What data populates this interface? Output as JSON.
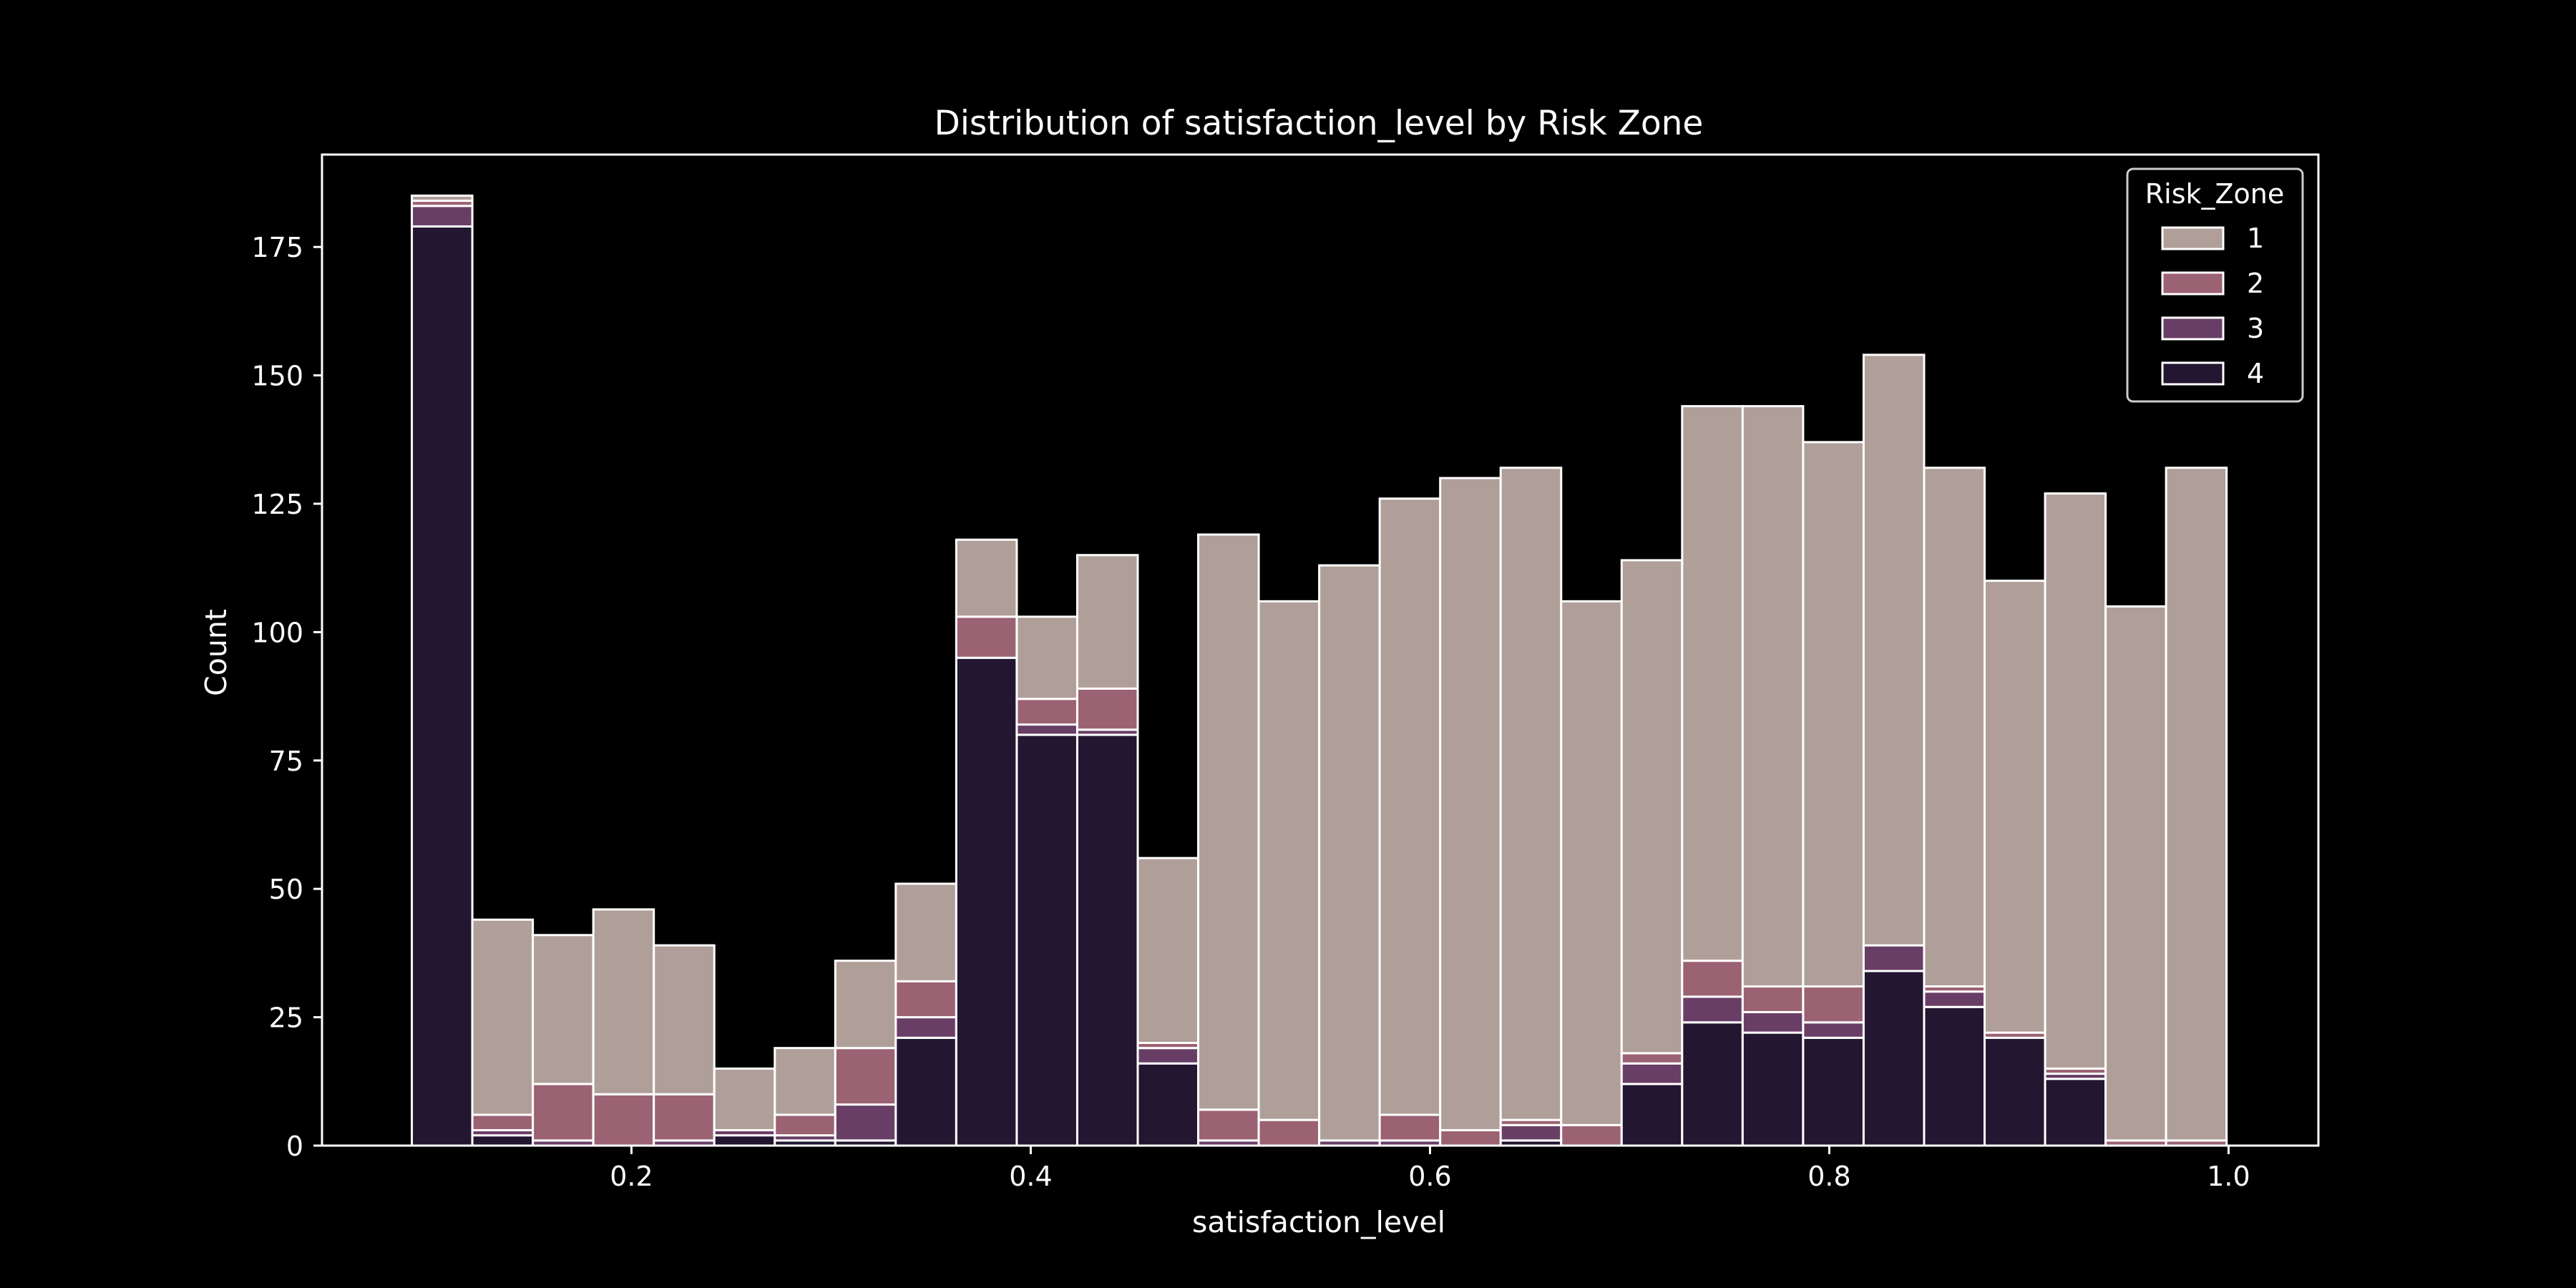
{
  "chart_data": {
    "type": "bar",
    "stacked": true,
    "title": "Distribution of satisfaction_level by Risk Zone",
    "xlabel": "satisfaction_level",
    "ylabel": "Count",
    "xlim": [
      0.045,
      1.045
    ],
    "ylim": [
      0,
      193
    ],
    "xticks": [
      0.2,
      0.4,
      0.6,
      0.8,
      1.0
    ],
    "xtick_labels": [
      "0.2",
      "0.4",
      "0.6",
      "0.8",
      "1.0"
    ],
    "yticks": [
      0,
      25,
      50,
      75,
      100,
      125,
      150,
      175
    ],
    "ytick_labels": [
      "0",
      "25",
      "50",
      "75",
      "100",
      "125",
      "150",
      "175"
    ],
    "grid": false,
    "bin_start": 0.09,
    "bin_width": 0.0303,
    "legend": {
      "title": "Risk_Zone",
      "position": "top-right",
      "entries": [
        "1",
        "2",
        "3",
        "4"
      ]
    },
    "colors": {
      "background": "#000000",
      "edge": "#ffffff",
      "1": "#b09f99",
      "2": "#9b6273",
      "3": "#693e66",
      "4": "#221631"
    },
    "series": [
      {
        "name": "4",
        "values": [
          179,
          2,
          0,
          0,
          0,
          2,
          1,
          1,
          21,
          95,
          80,
          80,
          16,
          0,
          0,
          0,
          0,
          0,
          1,
          0,
          12,
          24,
          22,
          21,
          34,
          27,
          21,
          13,
          0,
          0
        ]
      },
      {
        "name": "3",
        "values": [
          4,
          1,
          1,
          0,
          1,
          1,
          1,
          7,
          4,
          0,
          2,
          1,
          3,
          1,
          0,
          1,
          1,
          0,
          3,
          0,
          4,
          5,
          4,
          3,
          5,
          3,
          0,
          1,
          0,
          0
        ]
      },
      {
        "name": "2",
        "values": [
          1,
          3,
          11,
          10,
          9,
          0,
          4,
          11,
          7,
          8,
          5,
          8,
          1,
          6,
          5,
          0,
          5,
          3,
          1,
          4,
          2,
          7,
          5,
          7,
          0,
          1,
          1,
          1,
          1,
          1
        ]
      },
      {
        "name": "1",
        "values": [
          1,
          38,
          29,
          36,
          29,
          12,
          13,
          17,
          19,
          15,
          16,
          26,
          36,
          112,
          101,
          112,
          120,
          127,
          127,
          102,
          96,
          108,
          113,
          106,
          115,
          101,
          88,
          112,
          104,
          131
        ]
      }
    ]
  }
}
